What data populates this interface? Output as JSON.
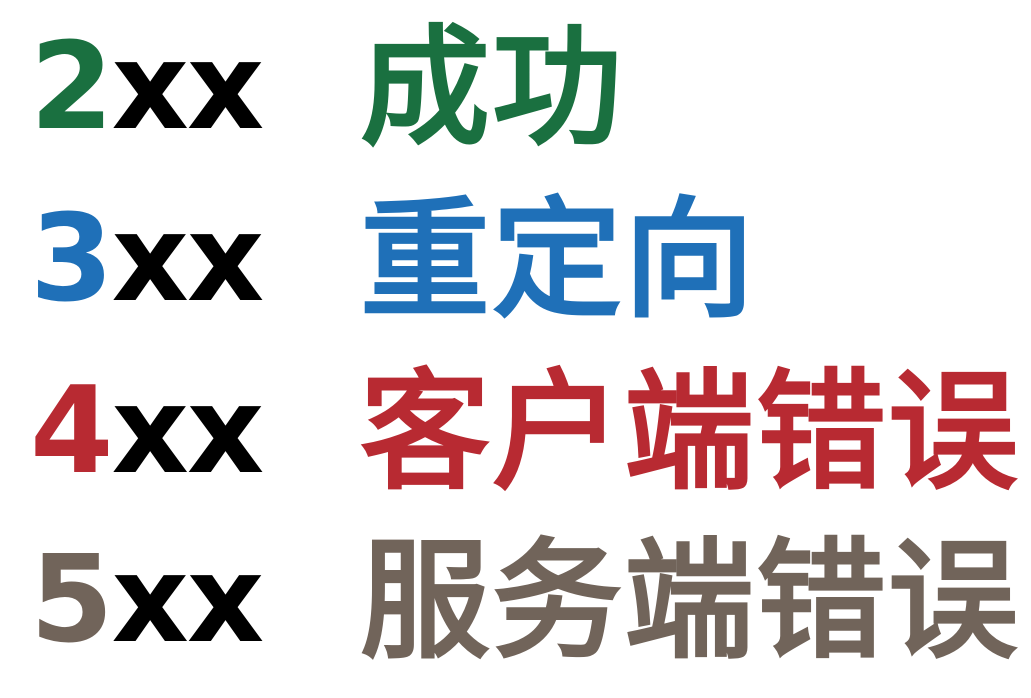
{
  "rows": [
    {
      "digit": "2",
      "suffix": "xx",
      "label": "成功",
      "color": "#1a7040"
    },
    {
      "digit": "3",
      "suffix": "xx",
      "label": "重定向",
      "color": "#1f70b8"
    },
    {
      "digit": "4",
      "suffix": "xx",
      "label": "客户端错误",
      "color": "#b82a32"
    },
    {
      "digit": "5",
      "suffix": "xx",
      "label": "服务端错误",
      "color": "#71645a"
    }
  ]
}
